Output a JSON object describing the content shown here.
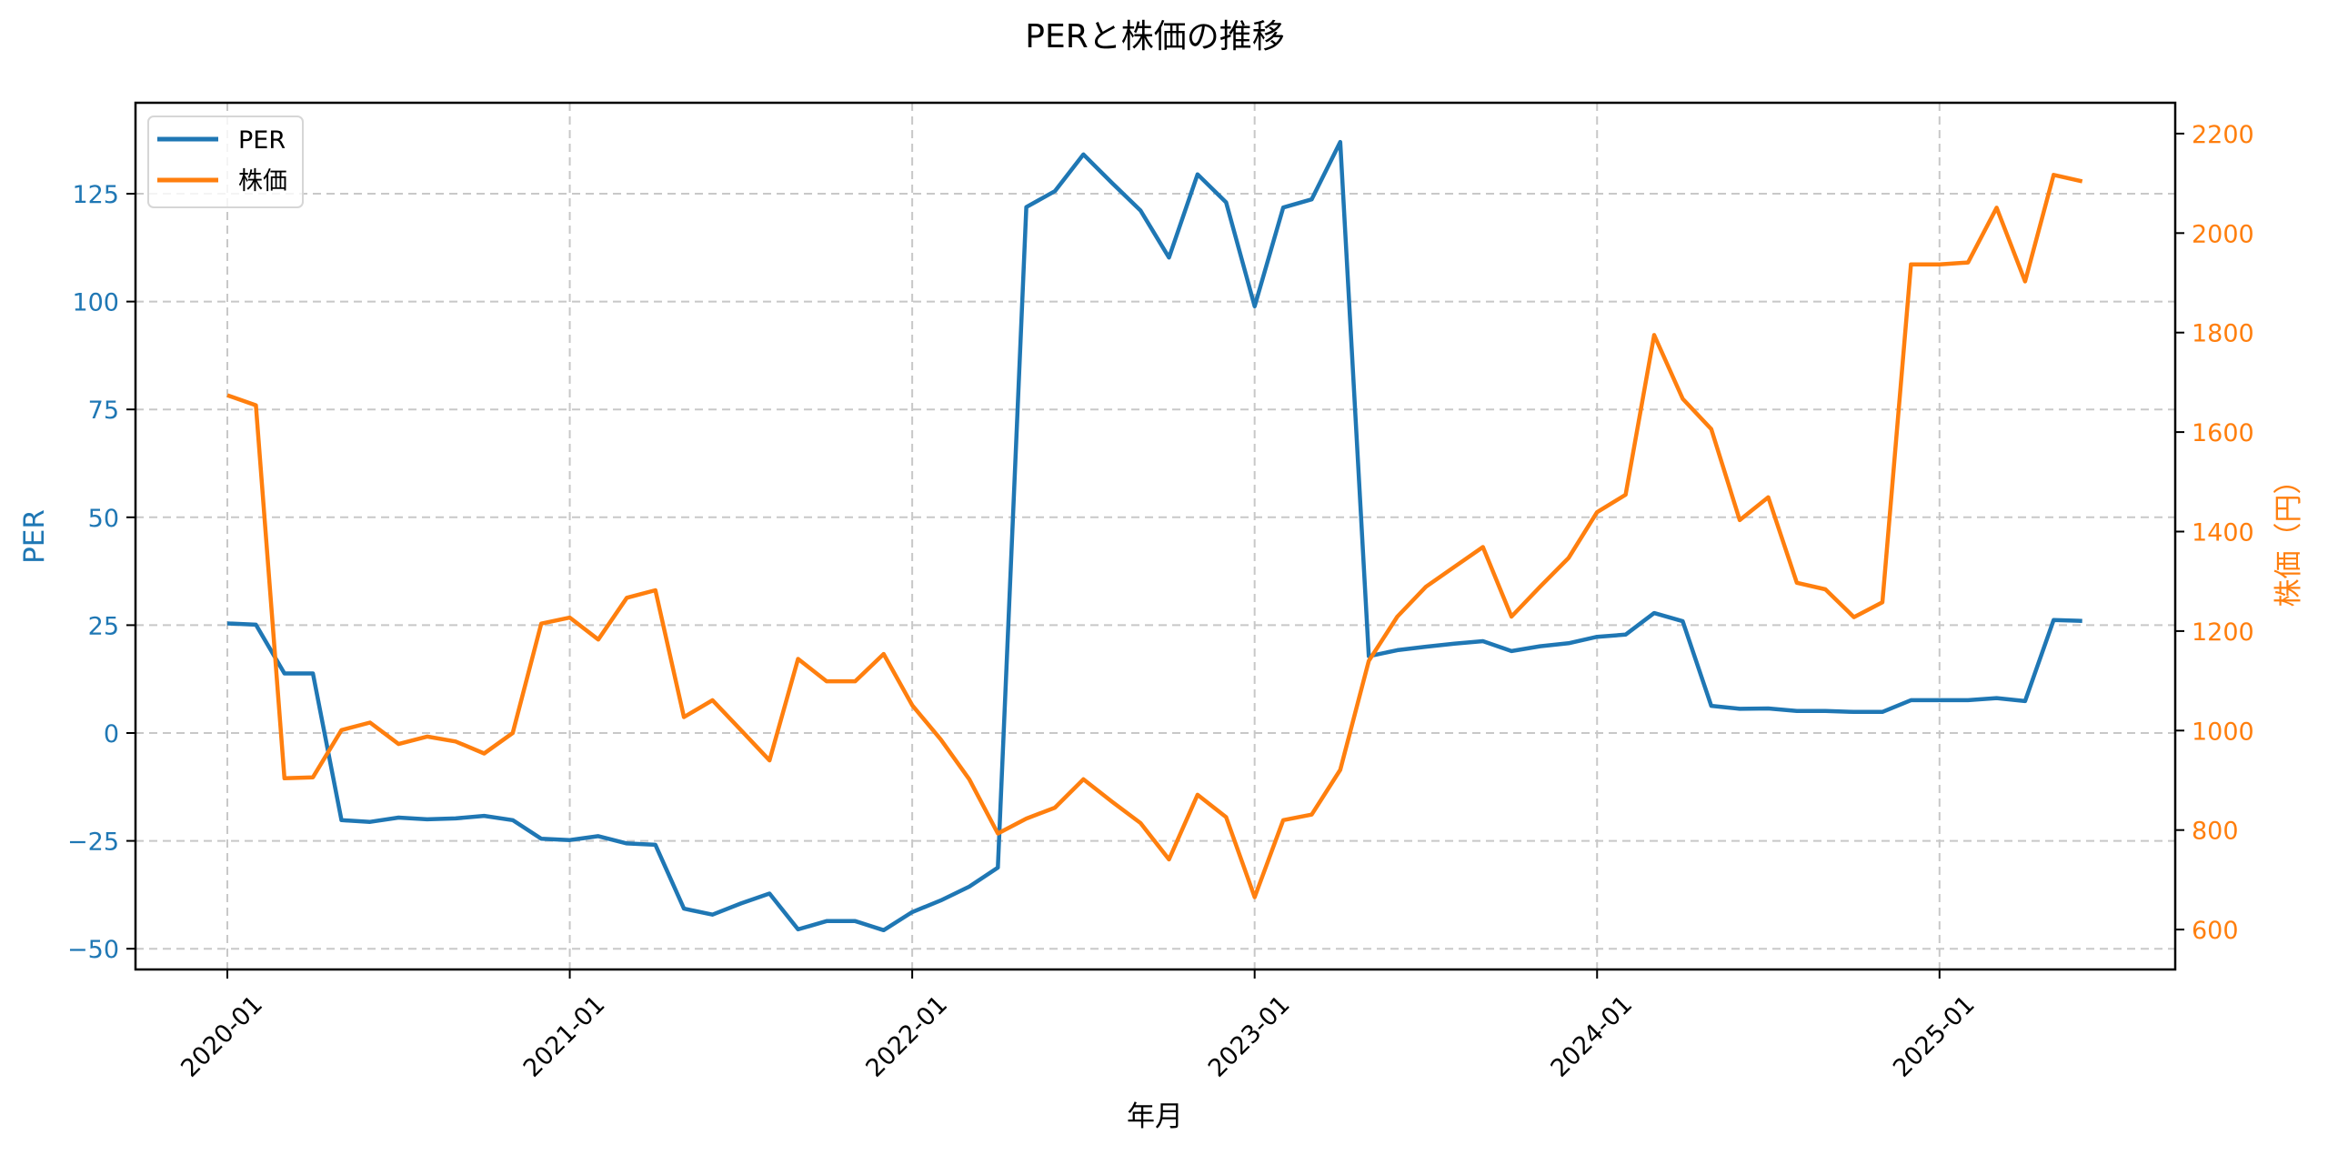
{
  "chart_data": {
    "type": "line",
    "title": "PERと株価の推移",
    "xlabel": "年月",
    "ylabel_left": "PER",
    "ylabel_right": "株価（円）",
    "x_tick_labels": [
      "2020-01",
      "2021-01",
      "2022-01",
      "2023-01",
      "2024-01",
      "2025-01"
    ],
    "left_ticks": [
      -50,
      -25,
      0,
      25,
      50,
      75,
      100,
      125
    ],
    "right_ticks": [
      600,
      800,
      1000,
      1200,
      1400,
      1600,
      1800,
      2000,
      2200
    ],
    "ylim_left": [
      -55,
      146
    ],
    "ylim_right": [
      520,
      2260
    ],
    "grid": true,
    "legend_position": "upper left",
    "x": [
      "2020-01",
      "2020-02",
      "2020-03",
      "2020-04",
      "2020-05",
      "2020-06",
      "2020-07",
      "2020-08",
      "2020-09",
      "2020-10",
      "2020-11",
      "2020-12",
      "2021-01",
      "2021-02",
      "2021-03",
      "2021-04",
      "2021-05",
      "2021-06",
      "2021-07",
      "2021-08",
      "2021-09",
      "2021-10",
      "2021-11",
      "2021-12",
      "2022-01",
      "2022-02",
      "2022-03",
      "2022-04",
      "2022-05",
      "2022-06",
      "2022-07",
      "2022-08",
      "2022-09",
      "2022-10",
      "2022-11",
      "2022-12",
      "2023-01",
      "2023-02",
      "2023-03",
      "2023-04",
      "2023-05",
      "2023-06",
      "2023-07",
      "2023-08",
      "2023-09",
      "2023-10",
      "2023-11",
      "2023-12",
      "2024-01",
      "2024-02",
      "2024-03",
      "2024-04",
      "2024-05",
      "2024-06",
      "2024-07",
      "2024-08",
      "2024-09",
      "2024-10",
      "2024-11",
      "2024-12",
      "2025-01",
      "2025-02",
      "2025-03",
      "2025-04",
      "2025-05",
      "2025-06"
    ],
    "series": [
      {
        "name": "PER",
        "axis": "left",
        "color": "#1f77b4",
        "values": [
          25.4,
          25.1,
          13.8,
          13.8,
          -20.2,
          -20.6,
          -19.6,
          -20.0,
          -19.8,
          -19.2,
          -20.2,
          -24.5,
          -24.8,
          -23.9,
          -25.6,
          -25.9,
          -40.7,
          -42.1,
          -39.5,
          -37.2,
          -45.5,
          -43.6,
          -43.6,
          -45.7,
          -41.5,
          -38.8,
          -35.6,
          -31.2,
          121.9,
          125.6,
          134.1,
          127.5,
          121.1,
          110.2,
          129.5,
          123.0,
          98.9,
          121.8,
          123.7,
          137.0,
          17.8,
          19.2,
          20.0,
          20.7,
          21.3,
          19.0,
          20.1,
          20.8,
          22.3,
          22.8,
          27.8,
          25.9,
          6.3,
          5.6,
          5.7,
          5.1,
          5.1,
          4.9,
          4.9,
          7.6,
          7.6,
          7.6,
          8.1,
          7.4,
          26.2,
          26.0
        ]
      },
      {
        "name": "株価",
        "axis": "right",
        "color": "#ff7f0e",
        "values": [
          1674,
          1654,
          904,
          906,
          1001,
          1016,
          973,
          988,
          978,
          954,
          995,
          1215,
          1227,
          1183,
          1267,
          1282,
          1027,
          1061,
          1001,
          940,
          1144,
          1099,
          1099,
          1154,
          1051,
          982,
          902,
          793,
          823,
          845,
          902,
          857,
          814,
          741,
          871,
          826,
          665,
          820,
          831,
          921,
          1140,
          1229,
          1289,
          1329,
          1369,
          1229,
          1289,
          1347,
          1439,
          1474,
          1795,
          1667,
          1606,
          1423,
          1469,
          1297,
          1284,
          1228,
          1258,
          1937,
          1937,
          1941,
          2051,
          1903,
          2117,
          2104
        ]
      }
    ]
  },
  "legend": {
    "items": [
      {
        "label": "PER",
        "color": "#1f77b4"
      },
      {
        "label": "株価",
        "color": "#ff7f0e"
      }
    ]
  },
  "colors": {
    "left_axis": "#1f77b4",
    "right_axis": "#ff7f0e",
    "grid": "#c8c8c8"
  }
}
